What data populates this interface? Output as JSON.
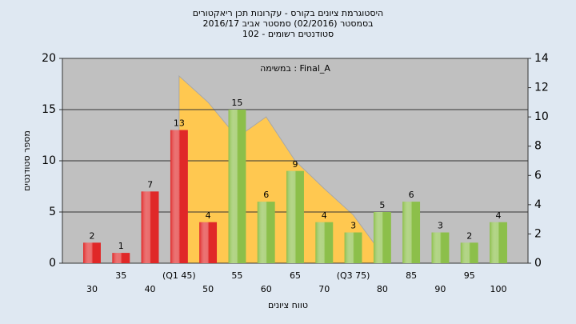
{
  "chart_data": {
    "type": "bar",
    "title_lines": [
      "היסטוגרמת ציונים בקורס - עקרונות תכן ריאקטורים",
      "בסמסטר  (02/2016)  סמסטר אביב 2016/17",
      "סטודנטים רשומים - 102"
    ],
    "annotation": "במשימה : Final_A",
    "x_label": "טווח ציונים",
    "y_label": "מספר סטודנטים",
    "categories": [
      "30",
      "35",
      "40",
      "(Q1 45)",
      "50",
      "55",
      "60",
      "65",
      "70",
      "(Q3 75)",
      "80",
      "85",
      "90",
      "95",
      "100"
    ],
    "values": [
      2,
      1,
      7,
      13,
      4,
      15,
      6,
      9,
      4,
      3,
      5,
      6,
      3,
      2,
      4
    ],
    "colors": [
      "#e02828",
      "#e02828",
      "#e02828",
      "#e02828",
      "#e02828",
      "#8cbf4a",
      "#8cbf4a",
      "#8cbf4a",
      "#8cbf4a",
      "#8cbf4a",
      "#8cbf4a",
      "#8cbf4a",
      "#8cbf4a",
      "#8cbf4a",
      "#8cbf4a"
    ],
    "area": {
      "axis": "y2",
      "color": "#ffc850",
      "values": [
        null,
        null,
        null,
        12.8,
        11,
        8.6,
        10,
        7,
        5.1,
        3.3,
        0.6,
        null,
        null,
        null,
        null
      ]
    },
    "ylim": [
      0,
      20
    ],
    "yticks": [
      0,
      5,
      10,
      15,
      20
    ],
    "y2lim": [
      0,
      14
    ],
    "y2ticks": [
      0,
      2,
      4,
      6,
      8,
      10,
      12,
      14
    ],
    "grid": true
  }
}
